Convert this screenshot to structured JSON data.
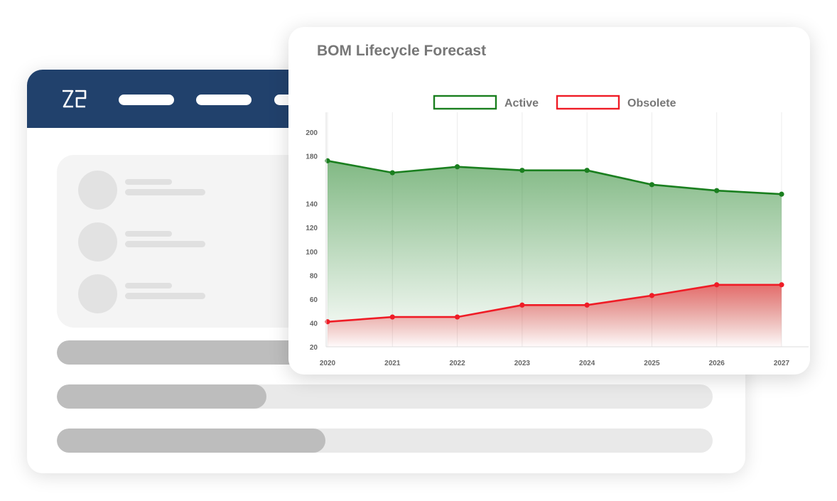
{
  "background_ui": {
    "header_color": "#21416c",
    "logo_icon": "z2-logo-icon",
    "progress_bars": [
      0.42,
      0.32,
      0.41
    ]
  },
  "chart_card": {
    "title": "BOM Lifecycle Forecast"
  },
  "chart_data": {
    "type": "area",
    "title": "BOM Lifecycle Forecast",
    "xlabel": "",
    "ylabel": "",
    "categories": [
      "2020",
      "2021",
      "2022",
      "2023",
      "2024",
      "2025",
      "2026",
      "2027"
    ],
    "y_ticks": [
      20,
      40,
      60,
      80,
      100,
      120,
      140,
      180,
      200
    ],
    "y_tick_display": [
      "20",
      "40",
      "60",
      "80",
      "100",
      "120",
      "140",
      "180",
      "200"
    ],
    "y_display_positions": [
      20,
      40,
      60,
      80,
      100,
      120,
      140,
      180,
      200
    ],
    "ylim": [
      20,
      200
    ],
    "grid": "vertical",
    "legend_position": "top-center",
    "series": [
      {
        "name": "Active",
        "color": "#1a7f1f",
        "values": [
          176,
          166,
          171,
          168,
          168,
          156,
          151,
          148
        ]
      },
      {
        "name": "Obsolete",
        "color": "#ef1c26",
        "values": [
          41,
          45,
          45,
          55,
          55,
          63,
          72,
          72
        ]
      }
    ]
  }
}
